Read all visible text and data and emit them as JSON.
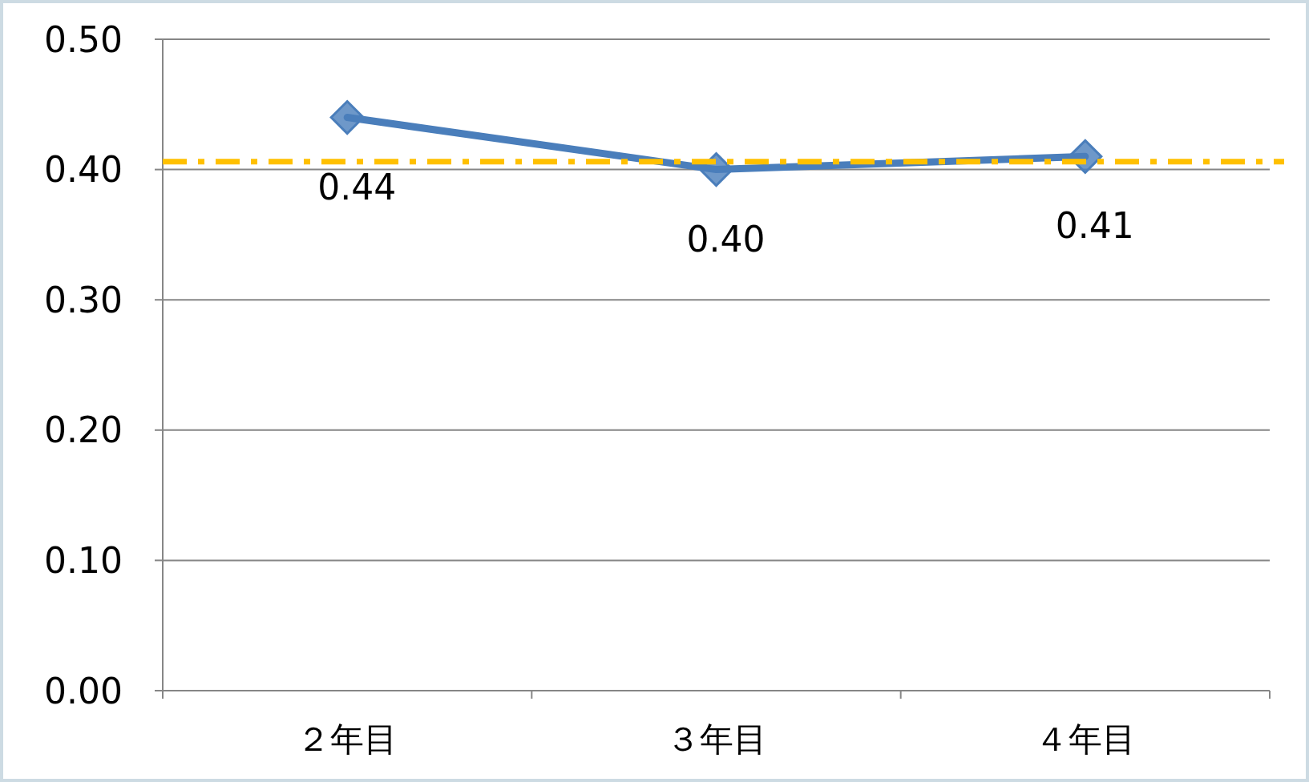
{
  "chart_data": {
    "type": "line",
    "categories": [
      "２年目",
      "３年目",
      "４年目"
    ],
    "series": [
      {
        "color": "#4a7ebb",
        "values": [
          0.44,
          0.4,
          0.41
        ],
        "value_labels": [
          "0.44",
          "0.40",
          "0.41"
        ]
      }
    ],
    "ylim": [
      0,
      0.5
    ],
    "yticks": [
      {
        "value": 0,
        "label": "0.00"
      },
      {
        "value": 0.1,
        "label": "0.10"
      },
      {
        "value": 0.2,
        "label": "0.20"
      },
      {
        "value": 0.3,
        "label": "0.30"
      },
      {
        "value": 0.4,
        "label": "0.40"
      },
      {
        "value": 0.5,
        "label": "0.50"
      }
    ],
    "grid": "y",
    "marker": "diamond",
    "line_style": "solid",
    "ref_lines": [
      {
        "axis": "y",
        "value": 0.406,
        "color": "#ffc000",
        "line_style": "dashed"
      }
    ]
  }
}
